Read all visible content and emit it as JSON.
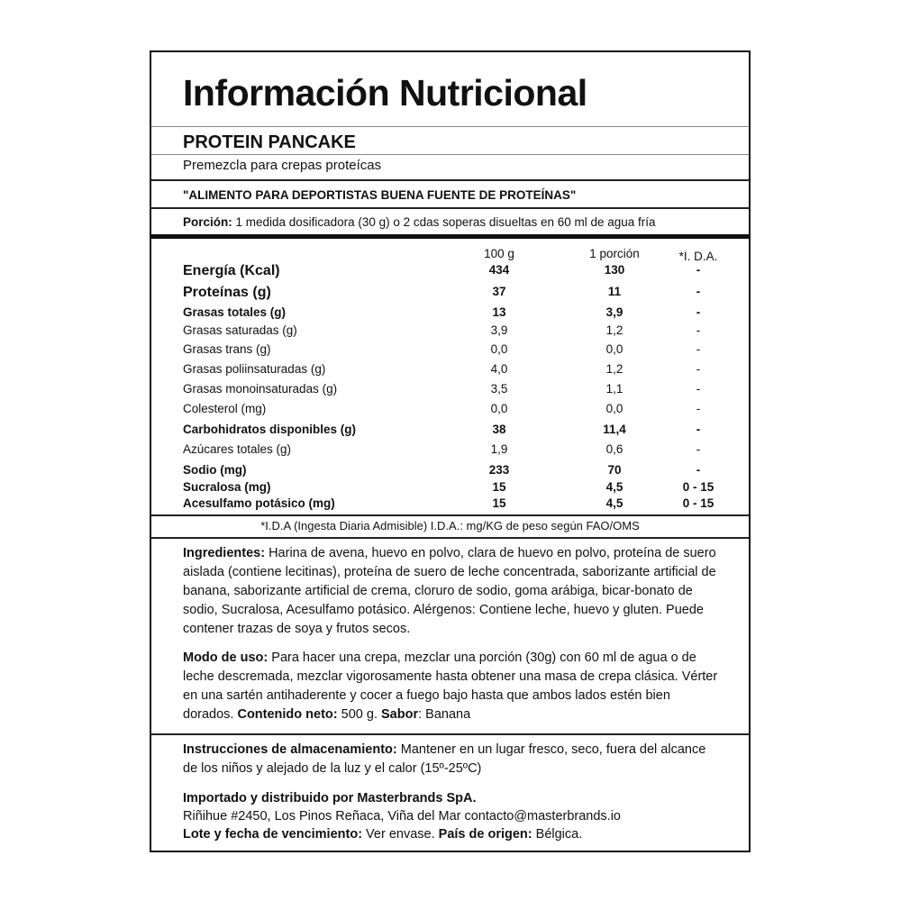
{
  "title": "Información Nutricional",
  "product": "PROTEIN PANCAKE",
  "subtitle": "Premezcla para crepas proteícas",
  "claim": "\"ALIMENTO PARA DEPORTISTAS BUENA FUENTE DE PROTEÍNAS\"",
  "portion": {
    "label": "Porción:",
    "text": " 1 medida dosificadora (30 g)   o 2 cdas soperas disueltas en 60 ml de agua fría"
  },
  "table": {
    "headers": [
      "100 g",
      "1 porción",
      "*I. D.A."
    ],
    "rows": [
      {
        "label": "Energía (Kcal)",
        "per100": "434",
        "portion": "130",
        "ida": "-"
      },
      {
        "label": "Proteínas (g)",
        "per100": "37",
        "portion": "11",
        "ida": "-"
      },
      {
        "label": "Grasas totales (g)",
        "per100": "13",
        "portion": "3,9",
        "ida": "-"
      },
      {
        "label": "Grasas saturadas (g)",
        "per100": "3,9",
        "portion": "1,2",
        "ida": "-"
      },
      {
        "label": "Grasas trans (g)",
        "per100": "0,0",
        "portion": "0,0",
        "ida": "-"
      },
      {
        "label": "Grasas poliinsaturadas (g)",
        "per100": "4,0",
        "portion": "1,2",
        "ida": "-"
      },
      {
        "label": "Grasas monoinsaturadas (g)",
        "per100": "3,5",
        "portion": "1,1",
        "ida": "-"
      },
      {
        "label": "Colesterol (mg)",
        "per100": "0,0",
        "portion": "0,0",
        "ida": "-"
      },
      {
        "label": "Carbohidratos disponibles (g)",
        "per100": "38",
        "portion": "11,4",
        "ida": "-"
      },
      {
        "label": "Azúcares totales (g)",
        "per100": "1,9",
        "portion": "0,6",
        "ida": "-"
      },
      {
        "label": "Sodio (mg)",
        "per100": "233",
        "portion": "70",
        "ida": "-"
      },
      {
        "label": "Sucralosa (mg)",
        "per100": "15",
        "portion": "4,5",
        "ida": "0 - 15"
      },
      {
        "label": "Acesulfamo potásico (mg)",
        "per100": "15",
        "portion": "4,5",
        "ida": "0 - 15"
      }
    ],
    "footnote": "*I.D.A (Ingesta Diaria Admisible) I.D.A.: mg/KG de peso según FAO/OMS"
  },
  "ingredients": {
    "label": "Ingredientes:",
    "text": " Harina de avena, huevo en polvo, clara de huevo en polvo, proteína de suero aislada (contiene lecitinas), proteína de suero de leche concentrada, saborizante artificial de banana, saborizante artificial de crema, cloruro de sodio, goma arábiga, bicar-bonato de sodio, Sucralosa, Acesulfamo potásico. Alérgenos: Contiene leche, huevo y gluten. Puede contener trazas  de soya y frutos secos."
  },
  "usage": {
    "label": "Modo de uso:",
    "text": " Para hacer una crepa, mezclar una porción (30g) con 60 ml de agua o de leche descremada, mezclar vigorosamente hasta obtener una masa de crepa clásica. Vérter en una sartén antihaderente y cocer a fuego bajo hasta que ambos lados estén bien dorados. ",
    "net_label": "Contenido neto:",
    "net_value": " 500 g. ",
    "flavor_label": "Sabor",
    "flavor_value": ": Banana"
  },
  "storage": {
    "label": "Instrucciones de almacenamiento:",
    "text": " Mantener en un lugar fresco, seco, fuera del alcance de los niños y alejado de la luz y el calor (15º-25ºC)"
  },
  "importer": {
    "line1": "Importado y distribuido por Masterbrands SpA.",
    "line2": "Riñihue #2450, Los Pinos Reñaca, Viña del Mar contacto@masterbrands.io",
    "lot_label": "Lote y fecha de vencimiento:",
    "lot_value": " Ver envase. ",
    "origin_label": "País de origen:",
    "origin_value": " Bélgica."
  }
}
